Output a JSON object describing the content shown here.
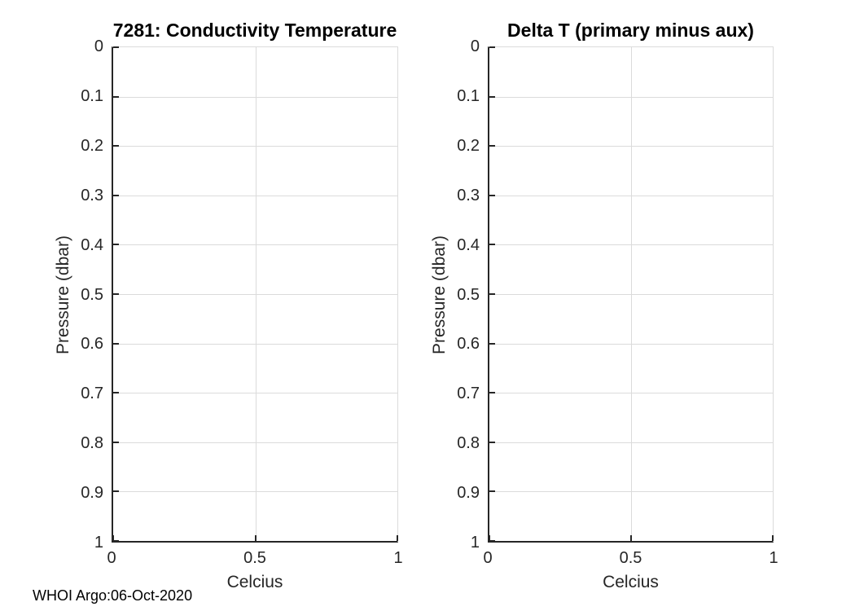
{
  "figure": {
    "footer_text": "WHOI Argo:06-Oct-2020",
    "background_color": "#ffffff",
    "axis_color": "#262626",
    "grid_color": "#dbdbdb",
    "title_color": "#000000"
  },
  "chart_data": [
    {
      "type": "line",
      "title": "7281: Conductivity Temperature",
      "xlabel": "Celcius",
      "ylabel": "Pressure (dbar)",
      "xlim": [
        0,
        1
      ],
      "ylim": [
        0,
        1
      ],
      "y_axis_direction": "reversed",
      "grid": true,
      "legend_position": "none",
      "xticks": {
        "values": [
          0,
          0.5,
          1
        ],
        "labels": [
          "0",
          "0.5",
          "1"
        ]
      },
      "yticks": {
        "values": [
          0,
          0.1,
          0.2,
          0.3,
          0.4,
          0.5,
          0.6,
          0.7,
          0.8,
          0.9,
          1
        ],
        "labels": [
          "0",
          "0.1",
          "0.2",
          "0.3",
          "0.4",
          "0.5",
          "0.6",
          "0.7",
          "0.8",
          "0.9",
          "1"
        ]
      },
      "series": []
    },
    {
      "type": "line",
      "title": "Delta T (primary minus aux)",
      "xlabel": "Celcius",
      "ylabel": "Pressure (dbar)",
      "xlim": [
        0,
        1
      ],
      "ylim": [
        0,
        1
      ],
      "y_axis_direction": "reversed",
      "grid": true,
      "legend_position": "none",
      "xticks": {
        "values": [
          0,
          0.5,
          1
        ],
        "labels": [
          "0",
          "0.5",
          "1"
        ]
      },
      "yticks": {
        "values": [
          0,
          0.1,
          0.2,
          0.3,
          0.4,
          0.5,
          0.6,
          0.7,
          0.8,
          0.9,
          1
        ],
        "labels": [
          "0",
          "0.1",
          "0.2",
          "0.3",
          "0.4",
          "0.5",
          "0.6",
          "0.7",
          "0.8",
          "0.9",
          "1"
        ]
      },
      "series": []
    }
  ]
}
